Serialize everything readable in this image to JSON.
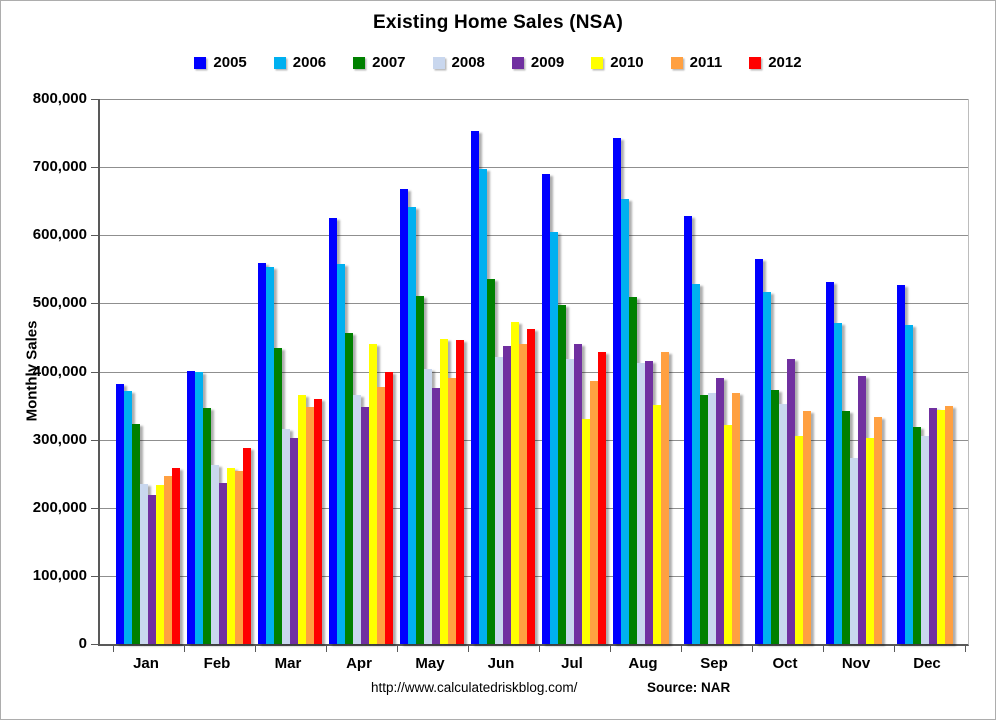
{
  "title": "Existing Home Sales (NSA)",
  "footer": {
    "url": "http://www.calculatedriskblog.com/",
    "source": "Source: NAR"
  },
  "chart_data": {
    "type": "bar",
    "title": "Existing Home Sales (NSA)",
    "xlabel": "",
    "ylabel": "Monthly Sales",
    "ylim": [
      0,
      800000
    ],
    "ytick_step": 100000,
    "ytick_labels": [
      "0",
      "100,000",
      "200,000",
      "300,000",
      "400,000",
      "500,000",
      "600,000",
      "700,000",
      "800,000"
    ],
    "grid": true,
    "legend_position": "top",
    "categories": [
      "Jan",
      "Feb",
      "Mar",
      "Apr",
      "May",
      "Jun",
      "Jul",
      "Aug",
      "Sep",
      "Oct",
      "Nov",
      "Dec"
    ],
    "series": [
      {
        "name": "2005",
        "color": "#0000FF",
        "values": [
          382000,
          401000,
          559000,
          625000,
          668000,
          753000,
          690000,
          743000,
          629000,
          565000,
          531000,
          527000
        ]
      },
      {
        "name": "2006",
        "color": "#00B0F0",
        "values": [
          372000,
          400000,
          554000,
          558000,
          642000,
          697000,
          605000,
          653000,
          528000,
          517000,
          471000,
          468000
        ]
      },
      {
        "name": "2007",
        "color": "#008000",
        "values": [
          323000,
          347000,
          435000,
          457000,
          511000,
          536000,
          497000,
          509000,
          365000,
          373000,
          342000,
          319000
        ]
      },
      {
        "name": "2008",
        "color": "#C9D7EE",
        "values": [
          235000,
          263000,
          316000,
          366000,
          403000,
          421000,
          419000,
          412000,
          369000,
          352000,
          273000,
          305000
        ]
      },
      {
        "name": "2009",
        "color": "#7030A0",
        "values": [
          219000,
          237000,
          303000,
          348000,
          376000,
          438000,
          441000,
          415000,
          391000,
          418000,
          394000,
          347000
        ]
      },
      {
        "name": "2010",
        "color": "#FFFF00",
        "values": [
          234000,
          258000,
          366000,
          441000,
          447000,
          472000,
          331000,
          351000,
          322000,
          306000,
          303000,
          344000
        ]
      },
      {
        "name": "2011",
        "color": "#FFA041",
        "values": [
          247000,
          254000,
          348000,
          378000,
          391000,
          440000,
          386000,
          428000,
          369000,
          342000,
          333000,
          350000
        ]
      },
      {
        "name": "2012",
        "color": "#FF0000",
        "values": [
          259000,
          287000,
          360000,
          400000,
          446000,
          462000,
          428000,
          null,
          null,
          null,
          null,
          null
        ]
      }
    ]
  }
}
